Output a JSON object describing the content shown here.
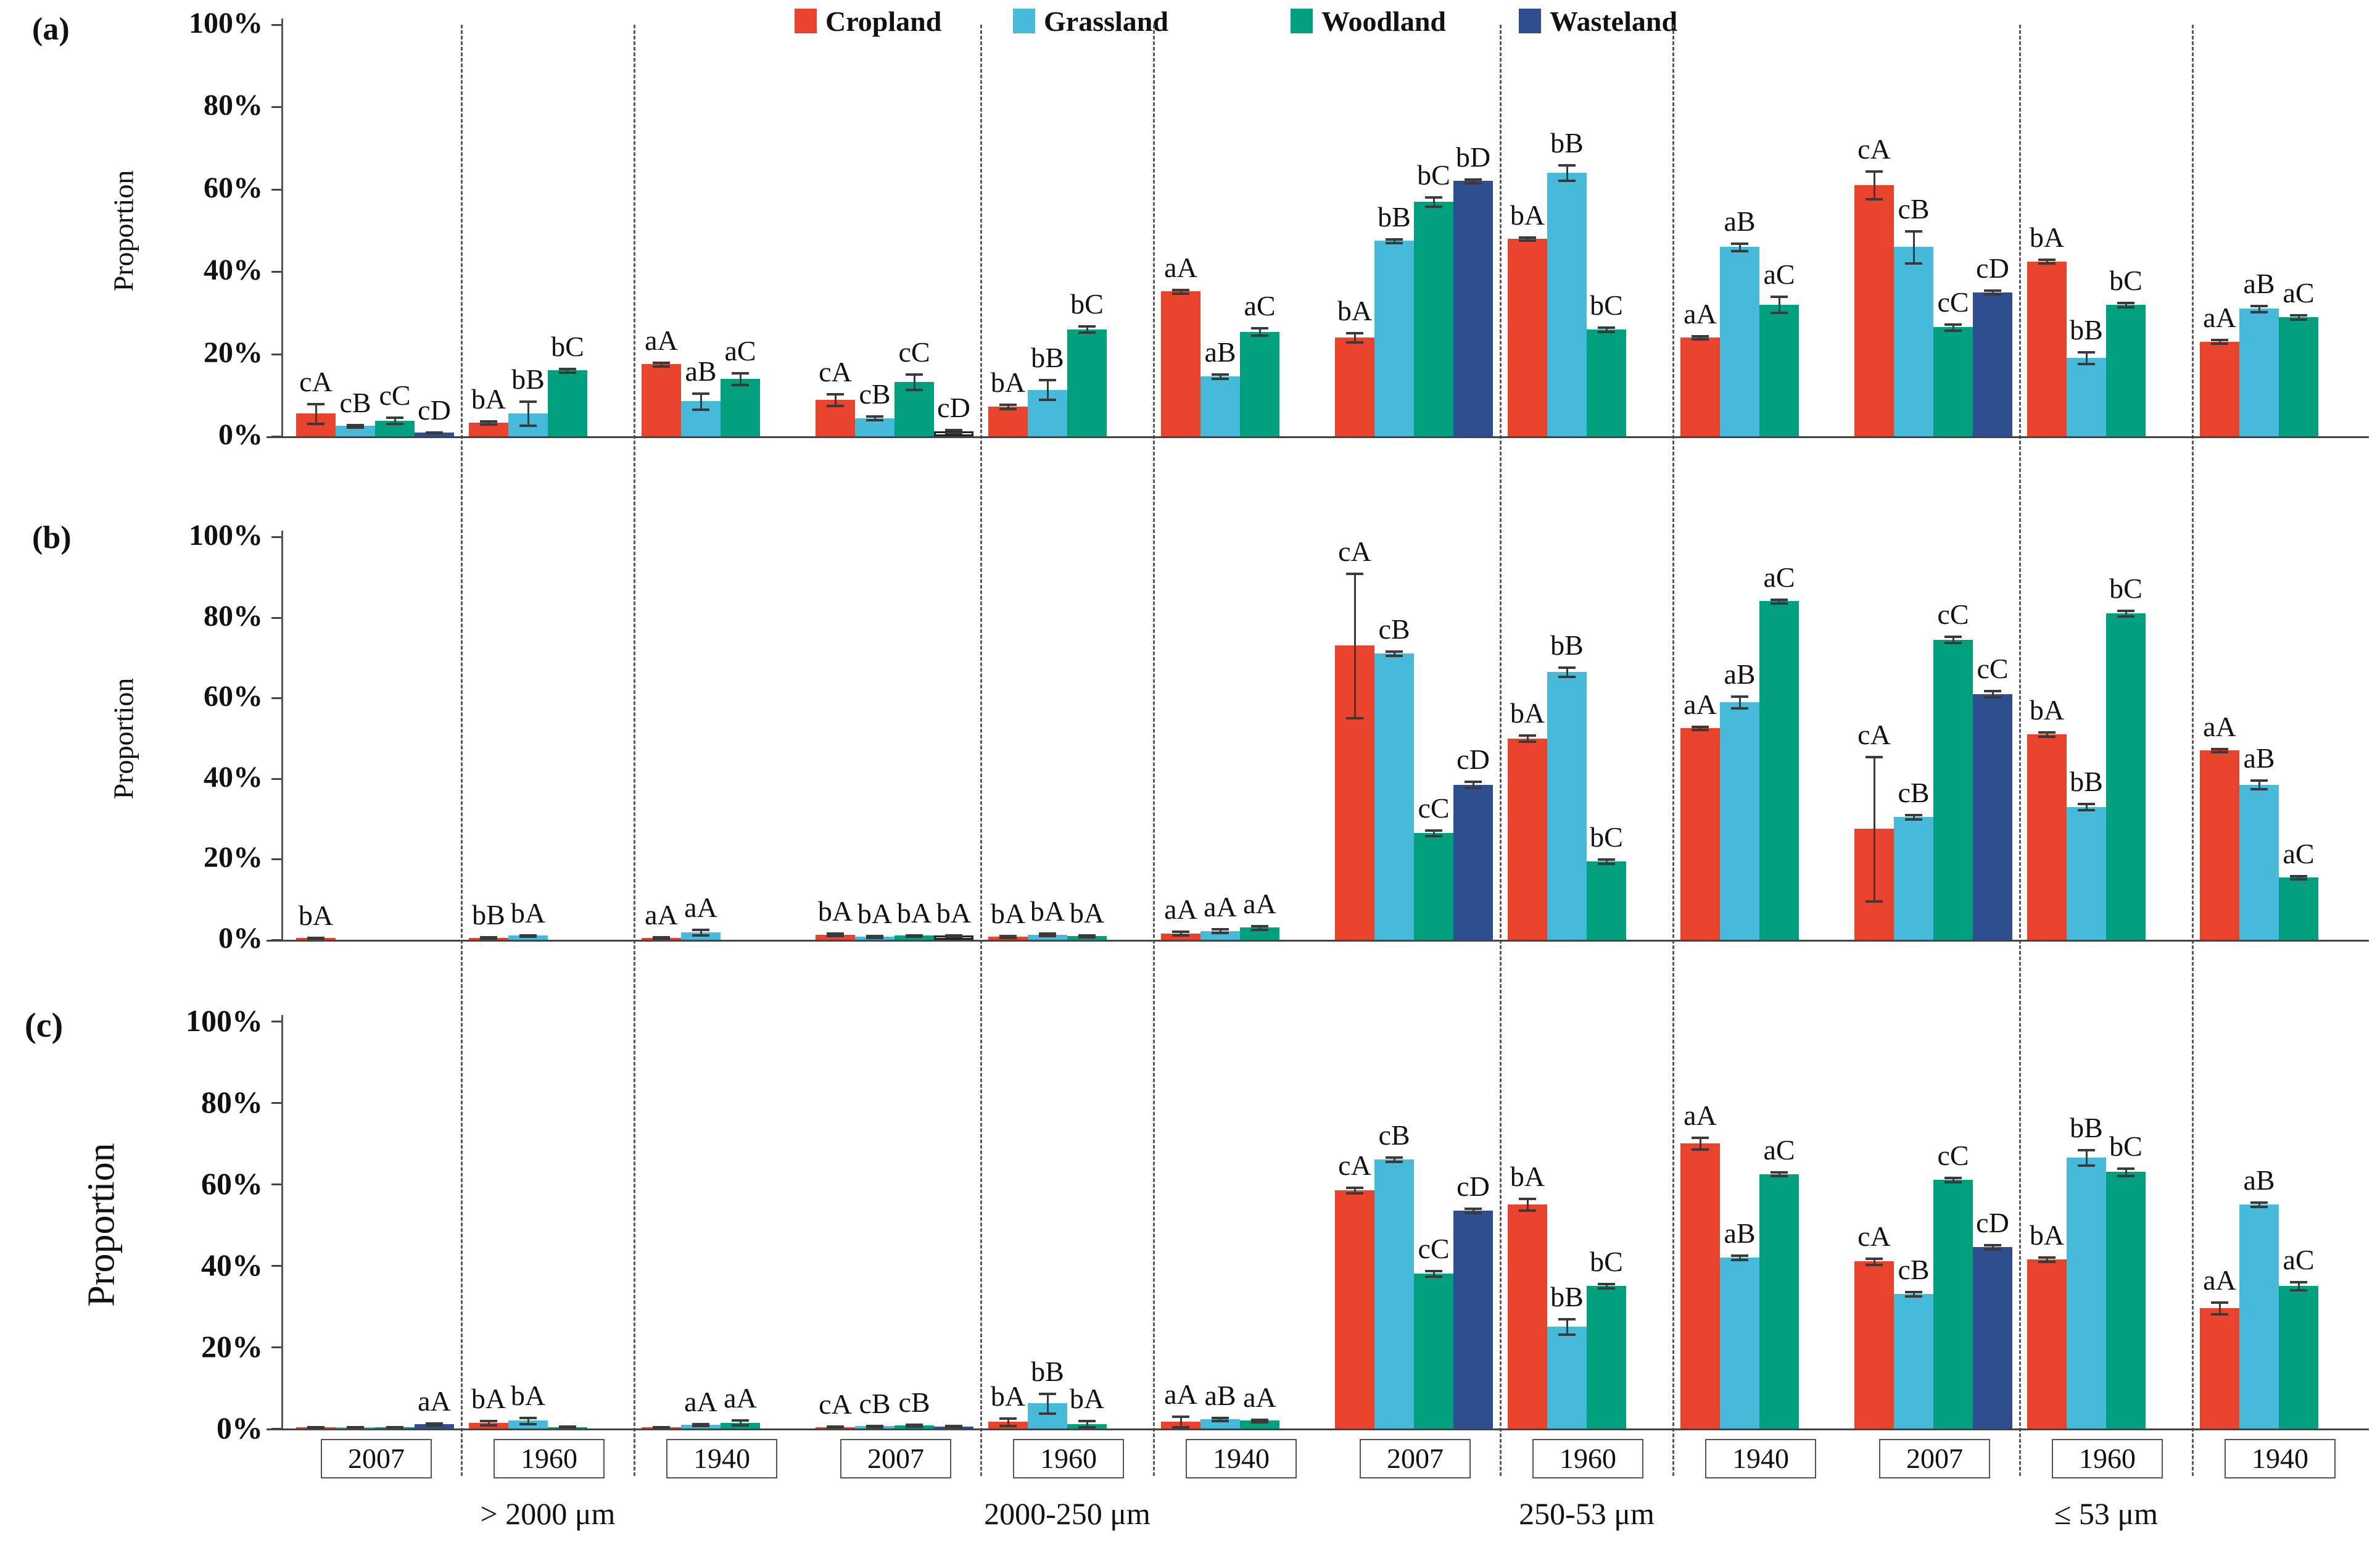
{
  "chart_data": {
    "type": "bar",
    "title": "",
    "y_axis": {
      "label_ab": "Proportion",
      "label_c": "Proportion",
      "ticks": [
        "0%",
        "20%",
        "40%",
        "60%",
        "80%",
        "100%"
      ],
      "range": [
        0,
        100
      ],
      "grid": false
    },
    "legend_position": "top",
    "legend": [
      {
        "label": "Cropland",
        "color": "#E8432C"
      },
      {
        "label": "Grassland",
        "color": "#47BAD9"
      },
      {
        "label": "Woodland",
        "color": "#00A07E"
      },
      {
        "label": "Wasteland",
        "color": "#2F4E8D"
      }
    ],
    "size_groups": [
      "> 2000 μm",
      "2000-250 μm",
      "250-53 μm",
      "≤ 53 μm"
    ],
    "years": [
      "2007",
      "1960",
      "1940"
    ],
    "value_unit": "%",
    "panels": [
      {
        "label": "(a)",
        "groups": [
          [
            [
              {
                "s": 0,
                "v": 5.5,
                "e": 2.5,
                "l": "cA"
              },
              {
                "s": 1,
                "v": 2.5,
                "e": 0.4,
                "l": "cB"
              },
              {
                "s": 2,
                "v": 3.8,
                "e": 0.8,
                "l": "cC"
              },
              {
                "s": 3,
                "v": 0.9,
                "e": 0.2,
                "l": "cD"
              }
            ],
            [
              {
                "s": 0,
                "v": 3.3,
                "e": 0.5,
                "l": "bA"
              },
              {
                "s": 1,
                "v": 5.5,
                "e": 3,
                "l": "bB"
              },
              {
                "s": 2,
                "v": 16,
                "e": 0.5,
                "l": "bC"
              }
            ],
            [
              {
                "s": 0,
                "v": 17.5,
                "e": 0.5,
                "l": "aA"
              },
              {
                "s": 1,
                "v": 8.5,
                "e": 2,
                "l": "aB"
              },
              {
                "s": 2,
                "v": 14,
                "e": 1.5,
                "l": "aC"
              }
            ]
          ],
          [
            [
              {
                "s": 0,
                "v": 8.8,
                "e": 1.5,
                "l": "cA"
              },
              {
                "s": 1,
                "v": 4.4,
                "e": 0.5,
                "l": "cB"
              },
              {
                "s": 2,
                "v": 13.2,
                "e": 2,
                "l": "cC"
              },
              {
                "s": 3,
                "v": 1.2,
                "e": 0.4,
                "l": "cD",
                "w": 1
              }
            ],
            [
              {
                "s": 0,
                "v": 7.2,
                "e": 0.6,
                "l": "bA"
              },
              {
                "s": 1,
                "v": 11.3,
                "e": 2.5,
                "l": "bB"
              },
              {
                "s": 2,
                "v": 26,
                "e": 0.8,
                "l": "bC"
              }
            ],
            [
              {
                "s": 0,
                "v": 35.2,
                "e": 0.5,
                "l": "aA"
              },
              {
                "s": 1,
                "v": 14.6,
                "e": 0.6,
                "l": "aB"
              },
              {
                "s": 2,
                "v": 25.4,
                "e": 1,
                "l": "aC"
              }
            ]
          ],
          [
            [
              {
                "s": 0,
                "v": 24,
                "e": 1.2,
                "l": "bA"
              },
              {
                "s": 1,
                "v": 47.5,
                "e": 0.5,
                "l": "bB"
              },
              {
                "s": 2,
                "v": 57,
                "e": 1.2,
                "l": "bC"
              },
              {
                "s": 3,
                "v": 62,
                "e": 0.5,
                "l": "bD"
              }
            ],
            [
              {
                "s": 0,
                "v": 48,
                "e": 0.5,
                "l": "bA"
              },
              {
                "s": 1,
                "v": 64,
                "e": 2,
                "l": "bB"
              },
              {
                "s": 2,
                "v": 26,
                "e": 0.6,
                "l": "bC"
              }
            ],
            [
              {
                "s": 0,
                "v": 24,
                "e": 0.4,
                "l": "aA"
              },
              {
                "s": 1,
                "v": 46,
                "e": 1,
                "l": "aB"
              },
              {
                "s": 2,
                "v": 32,
                "e": 2,
                "l": "aC"
              }
            ]
          ],
          [
            [
              {
                "s": 0,
                "v": 61,
                "e": 3.5,
                "l": "cA"
              },
              {
                "s": 1,
                "v": 46,
                "e": 4,
                "l": "cB"
              },
              {
                "s": 2,
                "v": 26.5,
                "e": 0.8,
                "l": "cC"
              },
              {
                "s": 3,
                "v": 35,
                "e": 0.5,
                "l": "cD"
              }
            ],
            [
              {
                "s": 0,
                "v": 42.5,
                "e": 0.5,
                "l": "bA"
              },
              {
                "s": 1,
                "v": 19,
                "e": 1.5,
                "l": "bB"
              },
              {
                "s": 2,
                "v": 32,
                "e": 0.6,
                "l": "bC"
              }
            ],
            [
              {
                "s": 0,
                "v": 23,
                "e": 0.5,
                "l": "aA"
              },
              {
                "s": 1,
                "v": 31,
                "e": 0.8,
                "l": "aB"
              },
              {
                "s": 2,
                "v": 29,
                "e": 0.6,
                "l": "aC"
              }
            ]
          ]
        ]
      },
      {
        "label": "(b)",
        "groups": [
          [
            [
              {
                "s": 0,
                "v": 0.4,
                "e": 0.2,
                "l": "bA"
              }
            ],
            [
              {
                "s": 0,
                "v": 0.5,
                "e": 0.2,
                "l": "bB"
              },
              {
                "s": 1,
                "v": 1.0,
                "e": 0.3,
                "l": "bA"
              }
            ],
            [
              {
                "s": 0,
                "v": 0.5,
                "e": 0.3,
                "l": "aA"
              },
              {
                "s": 1,
                "v": 1.8,
                "e": 0.8,
                "l": "aA"
              }
            ]
          ],
          [
            [
              {
                "s": 0,
                "v": 1.3,
                "e": 0.4,
                "l": "bA"
              },
              {
                "s": 1,
                "v": 0.8,
                "e": 0.3,
                "l": "bA"
              },
              {
                "s": 2,
                "v": 1.0,
                "e": 0.3,
                "l": "bA"
              },
              {
                "s": 3,
                "v": 1.0,
                "e": 0.3,
                "l": "bA",
                "w": 1
              }
            ],
            [
              {
                "s": 0,
                "v": 0.8,
                "e": 0.3,
                "l": "bA"
              },
              {
                "s": 1,
                "v": 1.3,
                "e": 0.4,
                "l": "bA"
              },
              {
                "s": 2,
                "v": 0.9,
                "e": 0.3,
                "l": "bA"
              }
            ],
            [
              {
                "s": 0,
                "v": 1.6,
                "e": 0.5,
                "l": "aA"
              },
              {
                "s": 1,
                "v": 2.2,
                "e": 0.5,
                "l": "aA"
              },
              {
                "s": 2,
                "v": 3.0,
                "e": 0.5,
                "l": "aA"
              }
            ]
          ],
          [
            [
              {
                "s": 0,
                "v": 73,
                "e": 18,
                "l": "cA"
              },
              {
                "s": 1,
                "v": 71,
                "e": 0.6,
                "l": "cB"
              },
              {
                "s": 2,
                "v": 26.5,
                "e": 0.8,
                "l": "cC"
              },
              {
                "s": 3,
                "v": 38.5,
                "e": 0.8,
                "l": "cD"
              }
            ],
            [
              {
                "s": 0,
                "v": 50,
                "e": 0.8,
                "l": "bA"
              },
              {
                "s": 1,
                "v": 66.5,
                "e": 1.2,
                "l": "bB"
              },
              {
                "s": 2,
                "v": 19.5,
                "e": 0.6,
                "l": "bC"
              }
            ],
            [
              {
                "s": 0,
                "v": 52.5,
                "e": 0.5,
                "l": "aA"
              },
              {
                "s": 1,
                "v": 59,
                "e": 1.5,
                "l": "aB"
              },
              {
                "s": 2,
                "v": 84,
                "e": 0.6,
                "l": "aC"
              }
            ]
          ],
          [
            [
              {
                "s": 0,
                "v": 27.5,
                "e": 18,
                "l": "cA"
              },
              {
                "s": 1,
                "v": 30.5,
                "e": 0.6,
                "l": "cB"
              },
              {
                "s": 2,
                "v": 74.5,
                "e": 0.8,
                "l": "cC"
              },
              {
                "s": 3,
                "v": 61,
                "e": 0.8,
                "l": "cC"
              }
            ],
            [
              {
                "s": 0,
                "v": 51,
                "e": 0.6,
                "l": "bA"
              },
              {
                "s": 1,
                "v": 33,
                "e": 0.8,
                "l": "bB"
              },
              {
                "s": 2,
                "v": 81,
                "e": 0.8,
                "l": "bC"
              }
            ],
            [
              {
                "s": 0,
                "v": 47,
                "e": 0.5,
                "l": "aA"
              },
              {
                "s": 1,
                "v": 38.5,
                "e": 1.2,
                "l": "aB"
              },
              {
                "s": 2,
                "v": 15.5,
                "e": 0.5,
                "l": "aC"
              }
            ]
          ]
        ]
      },
      {
        "label": "(c)",
        "groups": [
          [
            [
              {
                "s": 0,
                "v": 0.2,
                "e": 0.15,
                "l": ""
              },
              {
                "s": 1,
                "v": 0.25,
                "e": 0.15,
                "l": ""
              },
              {
                "s": 2,
                "v": 0.3,
                "e": 0.15,
                "l": ""
              },
              {
                "s": 3,
                "v": 1.0,
                "e": 0.3,
                "l": "aA"
              }
            ],
            [
              {
                "s": 0,
                "v": 1.3,
                "e": 0.6,
                "l": "bA"
              },
              {
                "s": 1,
                "v": 1.9,
                "e": 0.9,
                "l": "bA"
              },
              {
                "s": 2,
                "v": 0.35,
                "e": 0.2,
                "l": ""
              }
            ],
            [
              {
                "s": 0,
                "v": 0.2,
                "e": 0.15,
                "l": ""
              },
              {
                "s": 1,
                "v": 0.9,
                "e": 0.3,
                "l": "aA"
              },
              {
                "s": 2,
                "v": 1.4,
                "e": 0.7,
                "l": "aA"
              }
            ]
          ],
          [
            [
              {
                "s": 0,
                "v": 0.35,
                "e": 0.2,
                "l": "cA"
              },
              {
                "s": 1,
                "v": 0.55,
                "e": 0.25,
                "l": "cB"
              },
              {
                "s": 2,
                "v": 0.7,
                "e": 0.3,
                "l": "cB"
              },
              {
                "s": 3,
                "v": 0.5,
                "e": 0.2,
                "l": ""
              }
            ],
            [
              {
                "s": 0,
                "v": 1.6,
                "e": 1.0,
                "l": "bA"
              },
              {
                "s": 1,
                "v": 6.2,
                "e": 2.5,
                "l": "bB"
              },
              {
                "s": 2,
                "v": 1.1,
                "e": 0.8,
                "l": "bA"
              }
            ],
            [
              {
                "s": 0,
                "v": 1.7,
                "e": 1.4,
                "l": "aA"
              },
              {
                "s": 1,
                "v": 2.3,
                "e": 0.5,
                "l": "aB"
              },
              {
                "s": 2,
                "v": 1.9,
                "e": 0.4,
                "l": "aA"
              }
            ]
          ],
          [
            [
              {
                "s": 0,
                "v": 58.5,
                "e": 0.8,
                "l": "cA"
              },
              {
                "s": 1,
                "v": 66,
                "e": 0.6,
                "l": "cB"
              },
              {
                "s": 2,
                "v": 38,
                "e": 0.8,
                "l": "cC"
              },
              {
                "s": 3,
                "v": 53.5,
                "e": 0.6,
                "l": "cD"
              }
            ],
            [
              {
                "s": 0,
                "v": 55,
                "e": 1.5,
                "l": "bA"
              },
              {
                "s": 1,
                "v": 25,
                "e": 2,
                "l": "bB"
              },
              {
                "s": 2,
                "v": 35,
                "e": 0.6,
                "l": "bC"
              }
            ],
            [
              {
                "s": 0,
                "v": 70,
                "e": 1.5,
                "l": "aA"
              },
              {
                "s": 1,
                "v": 42,
                "e": 0.6,
                "l": "aB"
              },
              {
                "s": 2,
                "v": 62.5,
                "e": 0.6,
                "l": "aC"
              }
            ]
          ],
          [
            [
              {
                "s": 0,
                "v": 41,
                "e": 0.8,
                "l": "cA"
              },
              {
                "s": 1,
                "v": 33,
                "e": 0.6,
                "l": "cB"
              },
              {
                "s": 2,
                "v": 61,
                "e": 0.6,
                "l": "cC"
              },
              {
                "s": 3,
                "v": 44.5,
                "e": 0.6,
                "l": "cD"
              }
            ],
            [
              {
                "s": 0,
                "v": 41.5,
                "e": 0.6,
                "l": "bA"
              },
              {
                "s": 1,
                "v": 66.5,
                "e": 2,
                "l": "bB"
              },
              {
                "s": 2,
                "v": 63,
                "e": 1,
                "l": "bC"
              }
            ],
            [
              {
                "s": 0,
                "v": 29.5,
                "e": 1.5,
                "l": "aA"
              },
              {
                "s": 1,
                "v": 55,
                "e": 0.6,
                "l": "aB"
              },
              {
                "s": 2,
                "v": 35,
                "e": 1,
                "l": "aC"
              }
            ]
          ]
        ]
      }
    ]
  }
}
